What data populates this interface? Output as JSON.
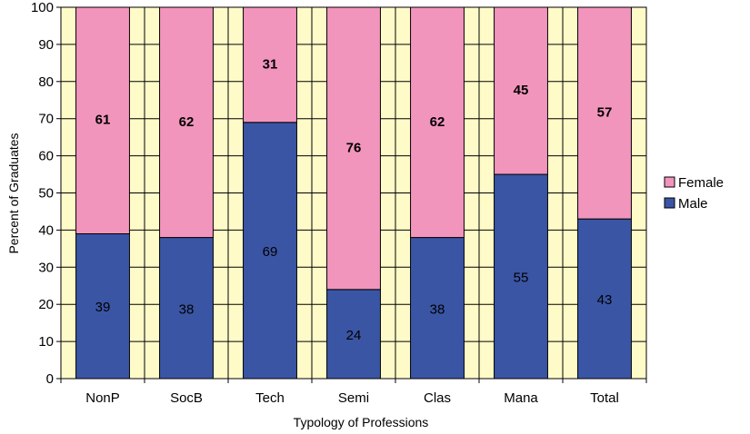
{
  "chart_data": {
    "type": "bar",
    "stacked": true,
    "title": "",
    "xlabel": "Typology of Professions",
    "ylabel": "Percent of Graduates",
    "ylim": [
      0,
      100
    ],
    "yticks": [
      "0",
      "10",
      "20",
      "30",
      "40",
      "50",
      "60",
      "70",
      "80",
      "90",
      "100"
    ],
    "categories": [
      "NonP",
      "SocB",
      "Tech",
      "Semi",
      "Clas",
      "Mana",
      "Total"
    ],
    "series": [
      {
        "name": "Male",
        "color": "#3a55a4",
        "values": [
          39,
          38,
          69,
          24,
          38,
          55,
          43
        ]
      },
      {
        "name": "Female",
        "color": "#f295bd",
        "values": [
          61,
          62,
          31,
          76,
          62,
          45,
          57
        ]
      }
    ],
    "legend": {
      "placement": "right",
      "entries": [
        "Female",
        "Male"
      ]
    },
    "grid": true,
    "plot_background": "#fffbc9"
  }
}
